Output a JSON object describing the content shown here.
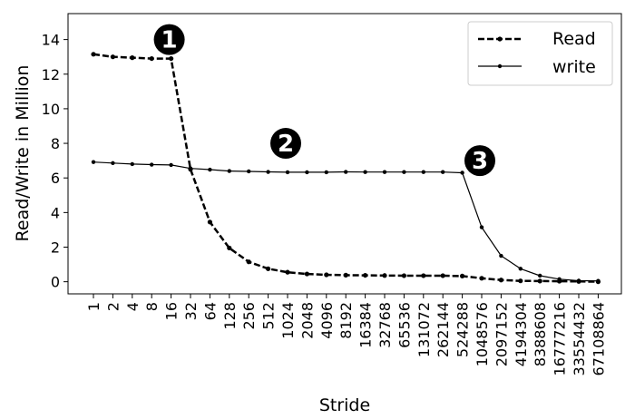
{
  "chart_data": {
    "type": "line",
    "title": "",
    "xlabel": "Stride",
    "ylabel": "Read/Write in Million",
    "categories": [
      "1",
      "2",
      "4",
      "8",
      "16",
      "32",
      "64",
      "128",
      "256",
      "512",
      "1024",
      "2048",
      "4096",
      "8192",
      "16384",
      "32768",
      "65536",
      "131072",
      "262144",
      "524288",
      "1048576",
      "2097152",
      "4194304",
      "8388608",
      "16777216",
      "33554432",
      "67108864"
    ],
    "ylim": [
      -0.7,
      15.5
    ],
    "yticks": [
      0,
      2,
      4,
      6,
      8,
      10,
      12,
      14
    ],
    "grid": false,
    "legend_position": "top-right",
    "series": [
      {
        "name": "Read",
        "style": "dashed",
        "color": "#000000",
        "values": [
          13.15,
          13.0,
          12.95,
          12.9,
          12.9,
          6.5,
          3.45,
          1.95,
          1.15,
          0.75,
          0.55,
          0.45,
          0.4,
          0.38,
          0.37,
          0.36,
          0.35,
          0.35,
          0.35,
          0.33,
          0.2,
          0.1,
          0.05,
          0.04,
          0.03,
          0.02,
          0.0
        ]
      },
      {
        "name": "write",
        "style": "solid",
        "color": "#000000",
        "values": [
          6.92,
          6.86,
          6.8,
          6.77,
          6.75,
          6.55,
          6.48,
          6.4,
          6.38,
          6.35,
          6.33,
          6.33,
          6.33,
          6.35,
          6.34,
          6.34,
          6.34,
          6.34,
          6.34,
          6.3,
          3.15,
          1.5,
          0.75,
          0.35,
          0.15,
          0.06,
          0.05
        ]
      }
    ],
    "annotations": [
      {
        "text": "1",
        "category_index": 4,
        "y": 14.0
      },
      {
        "text": "2",
        "category_index": 10,
        "y": 8.0
      },
      {
        "text": "3",
        "category_index": 20,
        "y": 7.0
      }
    ]
  }
}
